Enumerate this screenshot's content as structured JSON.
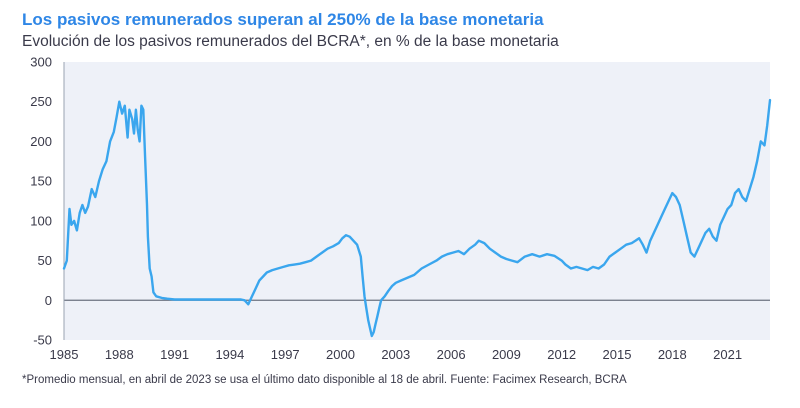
{
  "header": {
    "title": "Los pasivos remunerados superan al 250% de la base monetaria",
    "subtitle": "Evolución de los pasivos remunerados del BCRA*, en % de la base monetaria"
  },
  "footnote": "*Promedio mensual, en abril de 2023 se usa el último dato disponible al 18 de abril. Fuente: Facimex Research, BCRA",
  "colors": {
    "series": "#3aa6ee",
    "title": "#2e86e6",
    "plot_bg": "#eef1f8"
  },
  "chart_data": {
    "type": "line",
    "title": "Los pasivos remunerados superan al 250% de la base monetaria",
    "subtitle": "Evolución de los pasivos remunerados del BCRA*, en % de la base monetaria",
    "xlabel": "",
    "ylabel": "",
    "xlim": [
      1985,
      2023.3
    ],
    "ylim": [
      -50,
      300
    ],
    "grid": false,
    "y_ticks": [
      300,
      250,
      200,
      150,
      100,
      50,
      0,
      -50
    ],
    "y_tick_labels": [
      "300",
      "250",
      "200",
      "150",
      "100",
      "50",
      "0",
      "-50"
    ],
    "x_ticks": [
      1985,
      1988,
      1991,
      1994,
      1997,
      2000,
      2003,
      2006,
      2009,
      2012,
      2015,
      2018,
      2021
    ],
    "x_tick_labels": [
      "1985",
      "1988",
      "1991",
      "1994",
      "1997",
      "2000",
      "2003",
      "2006",
      "2009",
      "2012",
      "2015",
      "2018",
      "2021"
    ],
    "series": [
      {
        "name": "Pasivos remunerados del BCRA (% base monetaria)",
        "x": [
          1985.0,
          1985.15,
          1985.3,
          1985.4,
          1985.55,
          1985.7,
          1985.85,
          1986.0,
          1986.15,
          1986.3,
          1986.5,
          1986.7,
          1986.9,
          1987.1,
          1987.3,
          1987.5,
          1987.7,
          1987.85,
          1988.0,
          1988.15,
          1988.3,
          1988.45,
          1988.55,
          1988.7,
          1988.8,
          1988.9,
          1989.0,
          1989.1,
          1989.2,
          1989.3,
          1989.4,
          1989.5,
          1989.55,
          1989.65,
          1989.75,
          1989.85,
          1990.0,
          1990.3,
          1990.6,
          1991.0,
          1992.0,
          1993.0,
          1994.0,
          1994.6,
          1994.8,
          1995.0,
          1995.2,
          1995.4,
          1995.6,
          1995.8,
          1996.0,
          1996.3,
          1996.6,
          1996.9,
          1997.2,
          1997.5,
          1997.8,
          1998.1,
          1998.4,
          1998.7,
          1999.0,
          1999.3,
          1999.6,
          1999.9,
          2000.1,
          2000.3,
          2000.5,
          2000.7,
          2000.9,
          2001.1,
          2001.2,
          2001.3,
          2001.4,
          2001.5,
          2001.6,
          2001.7,
          2001.8,
          2001.9,
          2002.0,
          2002.1,
          2002.2,
          2002.4,
          2002.6,
          2002.8,
          2003.0,
          2003.3,
          2003.6,
          2004.0,
          2004.4,
          2004.8,
          2005.2,
          2005.5,
          2005.8,
          2006.1,
          2006.4,
          2006.7,
          2007.0,
          2007.3,
          2007.5,
          2007.8,
          2008.1,
          2008.4,
          2008.7,
          2009.0,
          2009.3,
          2009.6,
          2010.0,
          2010.4,
          2010.8,
          2011.2,
          2011.6,
          2012.0,
          2012.2,
          2012.5,
          2012.8,
          2013.1,
          2013.4,
          2013.7,
          2014.0,
          2014.3,
          2014.6,
          2014.9,
          2015.2,
          2015.5,
          2015.8,
          2016.0,
          2016.2,
          2016.4,
          2016.6,
          2016.8,
          2017.0,
          2017.2,
          2017.4,
          2017.6,
          2017.8,
          2018.0,
          2018.2,
          2018.4,
          2018.6,
          2018.8,
          2019.0,
          2019.2,
          2019.4,
          2019.6,
          2019.8,
          2020.0,
          2020.2,
          2020.4,
          2020.6,
          2020.8,
          2021.0,
          2021.2,
          2021.4,
          2021.6,
          2021.8,
          2022.0,
          2022.2,
          2022.4,
          2022.6,
          2022.8,
          2023.0,
          2023.15,
          2023.3
        ],
        "values": [
          40,
          50,
          115,
          95,
          100,
          88,
          110,
          120,
          110,
          118,
          140,
          130,
          150,
          165,
          175,
          200,
          212,
          230,
          250,
          235,
          245,
          205,
          240,
          228,
          210,
          240,
          215,
          200,
          245,
          240,
          180,
          120,
          80,
          40,
          30,
          10,
          5,
          3,
          2,
          1,
          1,
          1,
          1,
          1,
          0,
          -5,
          5,
          15,
          25,
          30,
          35,
          38,
          40,
          42,
          44,
          45,
          46,
          48,
          50,
          55,
          60,
          65,
          68,
          72,
          78,
          82,
          80,
          75,
          70,
          55,
          30,
          5,
          -10,
          -25,
          -35,
          -45,
          -40,
          -30,
          -20,
          -10,
          0,
          5,
          12,
          18,
          22,
          25,
          28,
          32,
          40,
          45,
          50,
          55,
          58,
          60,
          62,
          58,
          65,
          70,
          75,
          72,
          65,
          60,
          55,
          52,
          50,
          48,
          55,
          58,
          55,
          58,
          56,
          50,
          45,
          40,
          42,
          40,
          38,
          42,
          40,
          45,
          55,
          60,
          65,
          70,
          72,
          75,
          78,
          70,
          60,
          75,
          85,
          95,
          105,
          115,
          125,
          135,
          130,
          120,
          100,
          80,
          60,
          55,
          65,
          75,
          85,
          90,
          80,
          75,
          95,
          105,
          115,
          120,
          135,
          140,
          130,
          125,
          140,
          155,
          175,
          200,
          195,
          220,
          252
        ]
      }
    ]
  }
}
